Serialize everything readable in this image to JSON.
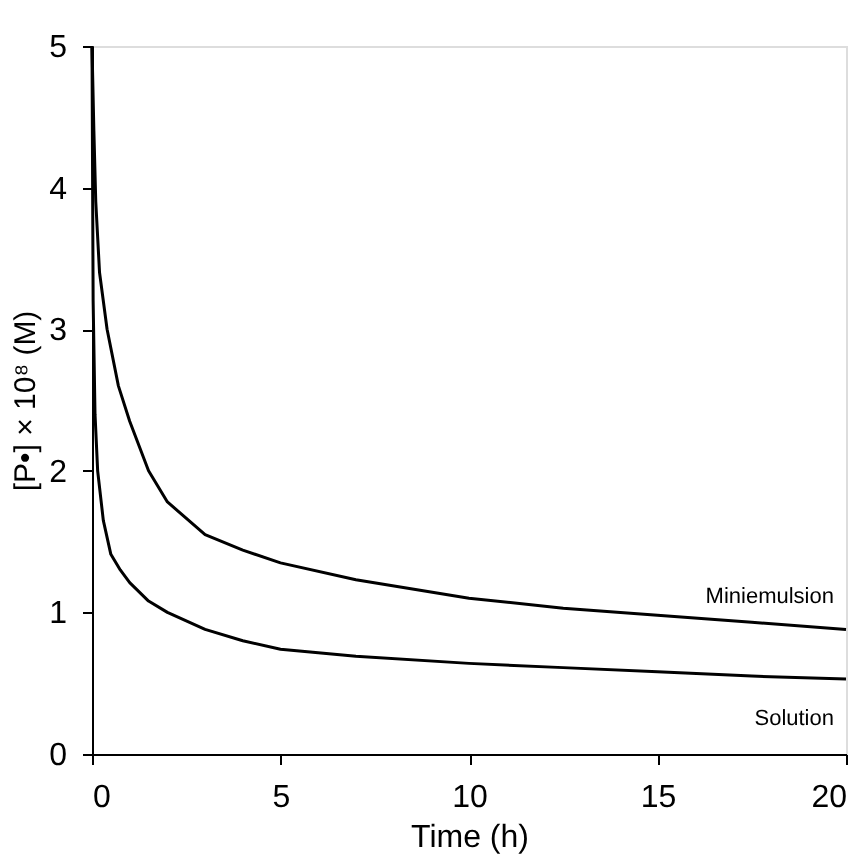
{
  "chart_data": {
    "type": "line",
    "xlabel": "Time (h)",
    "ylabel": "[P•] × 10⁸ (M)",
    "xlim": [
      0,
      20
    ],
    "xticks": [
      0,
      5,
      10,
      15,
      20
    ],
    "ylim": [
      0,
      5
    ],
    "yticks": [
      0,
      1,
      2,
      3,
      4,
      5
    ],
    "grid": false,
    "marker": "none",
    "line_style": "solid",
    "series": [
      {
        "color": "#000000",
        "x": [
          0,
          0.05,
          0.1,
          0.2,
          0.4,
          0.7,
          1,
          1.5,
          2,
          3,
          4,
          5,
          7,
          10,
          12.5,
          15,
          17.5,
          20
        ],
        "values": [
          5,
          4.4,
          3.9,
          3.4,
          3.0,
          2.6,
          2.35,
          2.0,
          1.78,
          1.55,
          1.44,
          1.35,
          1.23,
          1.1,
          1.03,
          0.98,
          0.93,
          0.88
        ]
      },
      {
        "color": "#000000",
        "x": [
          0,
          0.03,
          0.08,
          0.15,
          0.3,
          0.5,
          0.75,
          1,
          1.5,
          2,
          3,
          4,
          5,
          7,
          10,
          12.5,
          15,
          17.5,
          20
        ],
        "values": [
          5,
          3.2,
          2.4,
          2.0,
          1.65,
          1.41,
          1.3,
          1.21,
          1.08,
          1.0,
          0.88,
          0.8,
          0.74,
          0.69,
          0.64,
          0.61,
          0.58,
          0.55,
          0.53
        ]
      }
    ],
    "annotations": [
      "Miniemulsion",
      "Solution"
    ]
  }
}
